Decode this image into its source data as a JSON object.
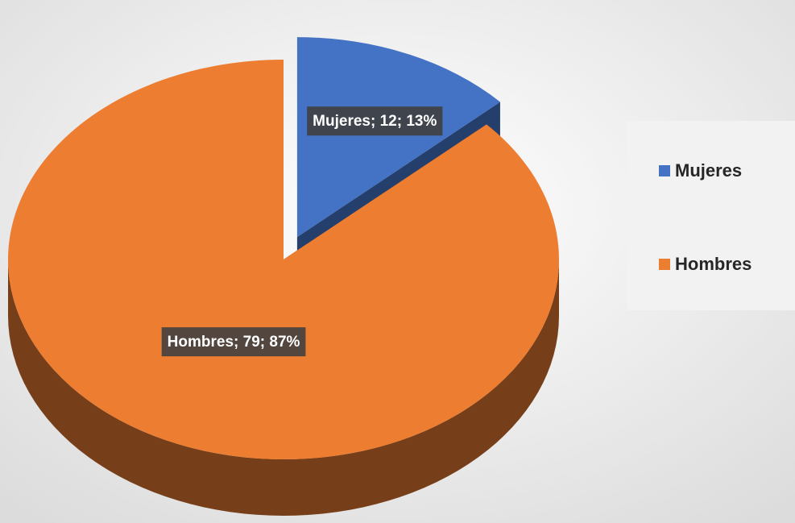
{
  "chart_data": {
    "type": "pie",
    "categories": [
      "Mujeres",
      "Hombres"
    ],
    "values": [
      12,
      79
    ],
    "value_labels": [
      "Mujeres; 12; 13%",
      "Hombres; 79; 87%"
    ],
    "colors": [
      "#4472c4",
      "#ed7d31"
    ],
    "legend": "right",
    "explode": [
      true,
      false
    ]
  }
}
